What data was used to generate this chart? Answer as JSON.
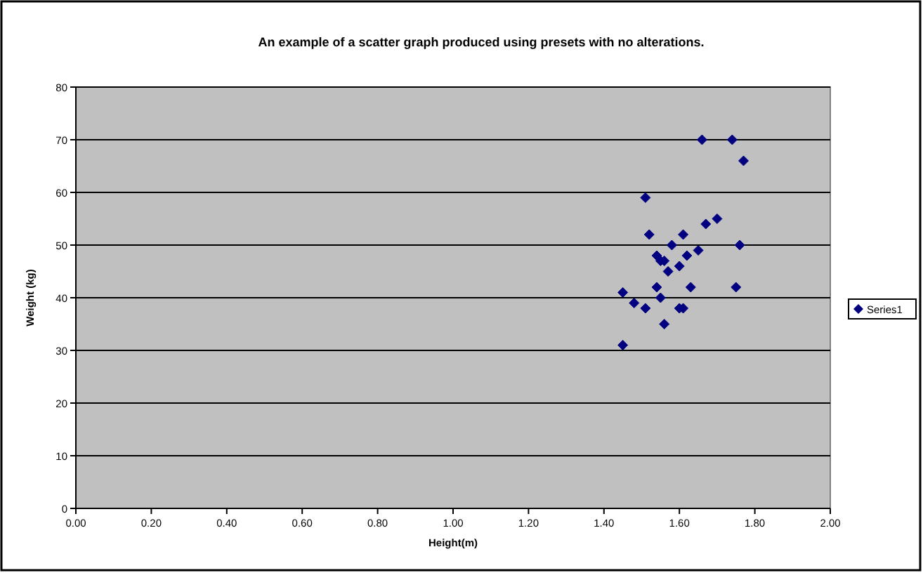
{
  "chart_data": {
    "type": "scatter",
    "title": "An example of a scatter graph produced using presets with no alterations.",
    "xlabel": "Height(m)",
    "ylabel": "Weight (kg)",
    "xlim": [
      0,
      2
    ],
    "xticks": [
      {
        "value": 0,
        "label": "0.00"
      },
      {
        "value": 0.2,
        "label": "0.20"
      },
      {
        "value": 0.4,
        "label": "0.40"
      },
      {
        "value": 0.6,
        "label": "0.60"
      },
      {
        "value": 0.8,
        "label": "0.80"
      },
      {
        "value": 1,
        "label": "1.00"
      },
      {
        "value": 1.2,
        "label": "1.20"
      },
      {
        "value": 1.4,
        "label": "1.40"
      },
      {
        "value": 1.6,
        "label": "1.60"
      },
      {
        "value": 1.8,
        "label": "1.80"
      },
      {
        "value": 2,
        "label": "2.00"
      }
    ],
    "ylim": [
      0,
      80
    ],
    "yticks": [
      0,
      10,
      20,
      30,
      40,
      50,
      60,
      70,
      80
    ],
    "grid": "y",
    "legend": "right",
    "marker": "diamond",
    "series": [
      {
        "name": "Series1",
        "color": "#000080",
        "x": [
          1.66,
          1.74,
          1.77,
          1.51,
          1.7,
          1.67,
          1.52,
          1.61,
          1.58,
          1.76,
          1.65,
          1.54,
          1.62,
          1.55,
          1.56,
          1.6,
          1.57,
          1.45,
          1.54,
          1.63,
          1.75,
          1.55,
          1.48,
          1.51,
          1.6,
          1.61,
          1.56,
          1.45
        ],
        "values": [
          70,
          70,
          66,
          59,
          55,
          54,
          52,
          52,
          50,
          50,
          49,
          48,
          48,
          47,
          47,
          46,
          45,
          41,
          42,
          42,
          42,
          40,
          39,
          38,
          38,
          38,
          35,
          31
        ]
      }
    ]
  }
}
